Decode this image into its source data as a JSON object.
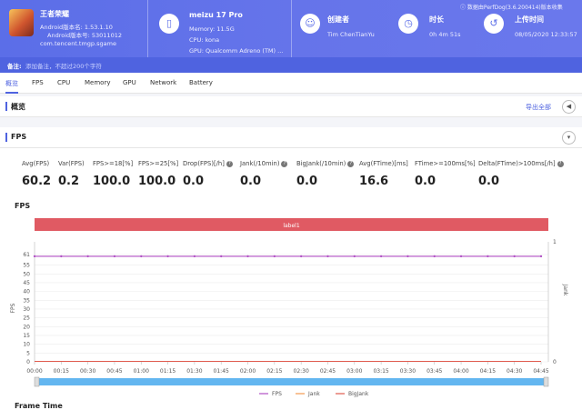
{
  "header": {
    "app_name": "王者荣耀",
    "android_version_name": "Android版本名: 1.53.1.10",
    "android_version_code": "Android版本号: 53011012",
    "package": "com.tencent.tmgp.sgame",
    "device_name": "meizu 17 Pro",
    "memory": "Memory: 11.5G",
    "cpu": "CPU: kona",
    "gpu": "GPU: Qualcomm Adreno (TM) ...",
    "creator_label": "创建者",
    "creator_value": "Tim ChenTianYu",
    "duration_label": "时长",
    "duration_value": "0h 4m 51s",
    "upload_label": "上传时间",
    "upload_value": "08/05/2020 12:33:57",
    "data_source": "数据由PerfDog(3.6.200414)版本收集"
  },
  "note": {
    "label": "备注:",
    "placeholder": "添加备注，不超过200个字符"
  },
  "tabs": [
    "概览",
    "FPS",
    "CPU",
    "Memory",
    "GPU",
    "Network",
    "Battery"
  ],
  "overview": {
    "title": "概览",
    "export_label": "导出全部"
  },
  "fps_section": {
    "title": "FPS",
    "metrics": [
      {
        "label": "Avg(FPS)",
        "value": "60.2",
        "help": false
      },
      {
        "label": "Var(FPS)",
        "value": "0.2",
        "help": false
      },
      {
        "label": "FPS>=18[%]",
        "value": "100.0",
        "help": false
      },
      {
        "label": "FPS>=25[%]",
        "value": "100.0",
        "help": false
      },
      {
        "label": "Drop(FPS)[/h]",
        "value": "0.0",
        "help": true
      },
      {
        "label": "Jank(/10min)",
        "value": "0.0",
        "help": true
      },
      {
        "label": "BigJank(/10min)",
        "value": "0.0",
        "help": true
      },
      {
        "label": "Avg(FTime)[ms]",
        "value": "16.6",
        "help": false
      },
      {
        "label": "FTime>=100ms[%]",
        "value": "0.0",
        "help": false
      },
      {
        "label": "Delta(FTime)>100ms[/h]",
        "value": "0.0",
        "help": true
      }
    ]
  },
  "next_section_title": "Frame Time",
  "chart_data": {
    "type": "line",
    "title": "FPS",
    "label_band": "label1",
    "ylabel": "FPS",
    "y2label": "Jank",
    "yticks": [
      "0",
      "5",
      "10",
      "15",
      "20",
      "25",
      "30",
      "35",
      "40",
      "45",
      "50",
      "55",
      "61"
    ],
    "y2ticks": [
      "0",
      "1"
    ],
    "ylim": [
      0,
      61
    ],
    "y2lim": [
      0,
      1
    ],
    "x": [
      "00:00",
      "00:15",
      "00:30",
      "00:45",
      "01:00",
      "01:15",
      "01:30",
      "01:45",
      "02:00",
      "02:15",
      "02:30",
      "02:45",
      "03:00",
      "03:15",
      "03:30",
      "03:45",
      "04:00",
      "04:15",
      "04:30",
      "04:45"
    ],
    "series": [
      {
        "name": "FPS",
        "color": "#b04fc4",
        "values": [
          60,
          60,
          60,
          60,
          60,
          60,
          60,
          60,
          60,
          60,
          60,
          60,
          60,
          60,
          60,
          60,
          60,
          60,
          60,
          60
        ]
      },
      {
        "name": "Jank",
        "color": "#f39a4f",
        "values": [
          0,
          0,
          0,
          0,
          0,
          0,
          0,
          0,
          0,
          0,
          0,
          0,
          0,
          0,
          0,
          0,
          0,
          0,
          0,
          0
        ]
      },
      {
        "name": "BigJank",
        "color": "#e05a4e",
        "values": [
          0,
          0,
          0,
          0,
          0,
          0,
          0,
          0,
          0,
          0,
          0,
          0,
          0,
          0,
          0,
          0,
          0,
          0,
          0,
          0
        ]
      }
    ],
    "legend_position": "bottom",
    "colors": {
      "label_band": "#e05a63",
      "scroll_bar": "#63b6f0"
    }
  }
}
